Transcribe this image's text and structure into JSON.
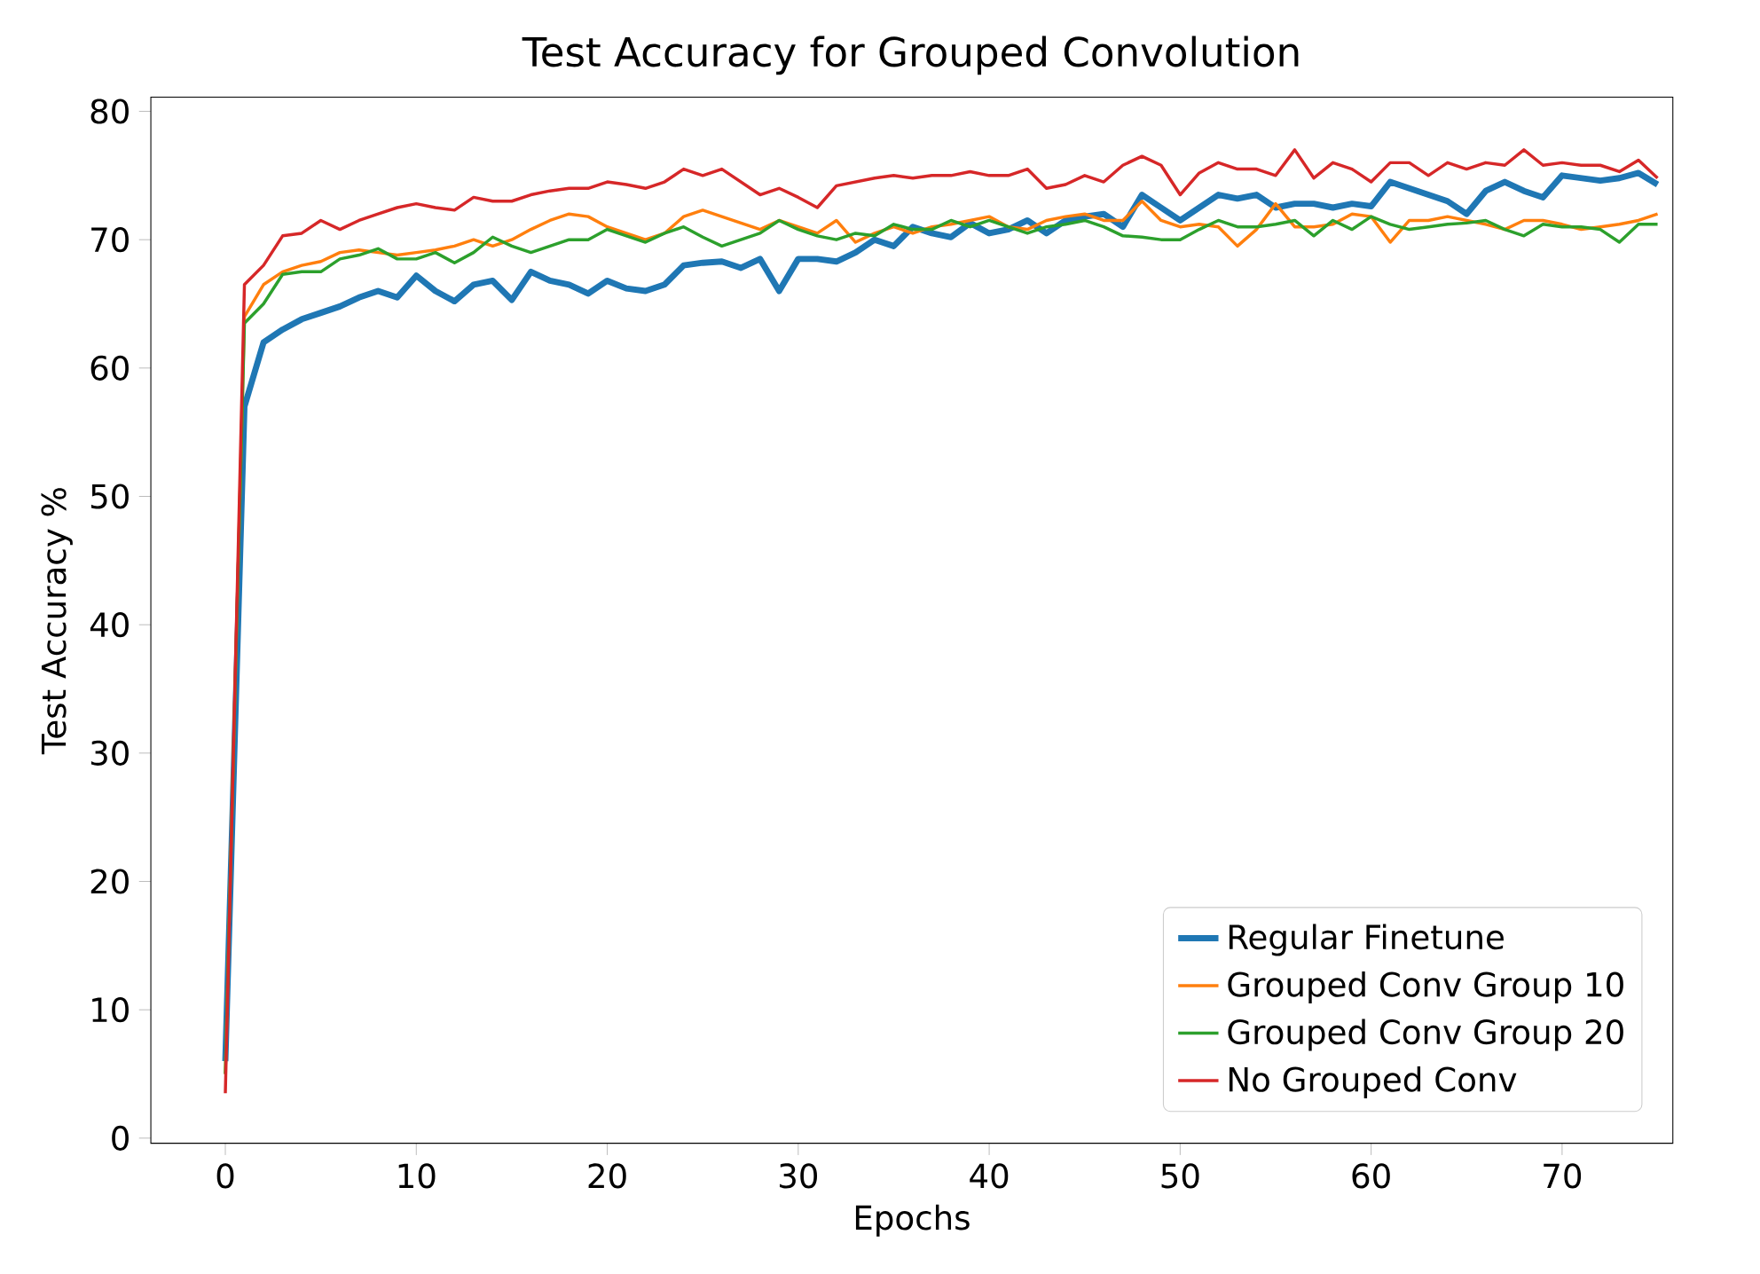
{
  "chart_data": {
    "type": "line",
    "title": "Test Accuracy for Grouped Convolution",
    "xlabel": "Epochs",
    "ylabel": "Test Accuracy %",
    "x": [
      0,
      1,
      2,
      3,
      4,
      5,
      6,
      7,
      8,
      9,
      10,
      11,
      12,
      13,
      14,
      15,
      16,
      17,
      18,
      19,
      20,
      21,
      22,
      23,
      24,
      25,
      26,
      27,
      28,
      29,
      30,
      31,
      32,
      33,
      34,
      35,
      36,
      37,
      38,
      39,
      40,
      41,
      42,
      43,
      44,
      45,
      46,
      47,
      48,
      49,
      50,
      51,
      52,
      53,
      54,
      55,
      56,
      57,
      58,
      59,
      60,
      61,
      62,
      63,
      64,
      65,
      66,
      67,
      68,
      69,
      70,
      71,
      72,
      73,
      74,
      75
    ],
    "xlim": [
      -3.9,
      75.8
    ],
    "ylim": [
      -0.4,
      81.1
    ],
    "xticks": [
      0,
      10,
      20,
      30,
      40,
      50,
      60,
      70
    ],
    "yticks": [
      0,
      10,
      20,
      30,
      40,
      50,
      60,
      70,
      80
    ],
    "legend": "bottom right",
    "grid": false,
    "line_style": "solid",
    "marker": "none",
    "series": [
      {
        "name": "Regular Finetune",
        "color": "#1f77b4",
        "values": [
          6,
          57,
          62,
          63,
          63.8,
          64.3,
          64.8,
          65.5,
          66,
          65.5,
          67.2,
          66,
          65.2,
          66.5,
          66.8,
          65.3,
          67.5,
          66.8,
          66.5,
          65.8,
          66.8,
          66.2,
          66,
          66.5,
          68,
          68.2,
          68.3,
          67.8,
          68.5,
          66,
          68.5,
          68.5,
          68.3,
          69,
          70,
          69.5,
          71,
          70.5,
          70.2,
          71.3,
          70.5,
          70.8,
          71.5,
          70.5,
          71.5,
          71.8,
          72,
          71,
          73.5,
          72.5,
          71.5,
          72.5,
          73.5,
          73.2,
          73.5,
          72.5,
          72.8,
          72.8,
          72.5,
          72.8,
          72.6,
          74.5,
          74,
          73.5,
          73,
          72,
          73.8,
          74.5,
          73.8,
          73.3,
          75,
          74.8,
          74.6,
          74.8,
          75.2,
          74.3
        ]
      },
      {
        "name": "Grouped Conv Group 10",
        "color": "#ff7f0e",
        "values": [
          5,
          64,
          66.5,
          67.5,
          68,
          68.3,
          69,
          69.2,
          69,
          68.8,
          69,
          69.2,
          69.5,
          70,
          69.5,
          70,
          70.8,
          71.5,
          72,
          71.8,
          71,
          70.5,
          70,
          70.5,
          71.8,
          72.3,
          71.8,
          71.3,
          70.8,
          71.5,
          71,
          70.5,
          71.5,
          69.8,
          70.5,
          71,
          70.5,
          71,
          71.2,
          71.5,
          71.8,
          71,
          70.8,
          71.5,
          71.8,
          72,
          71.5,
          71.5,
          73,
          71.5,
          71,
          71.2,
          71,
          69.5,
          70.8,
          72.8,
          71,
          71,
          71.2,
          72,
          71.8,
          69.8,
          71.5,
          71.5,
          71.8,
          71.5,
          71.2,
          70.8,
          71.5,
          71.5,
          71.2,
          70.8,
          71,
          71.2,
          71.5,
          72
        ]
      },
      {
        "name": "Grouped Conv Group 20",
        "color": "#2ca02c",
        "values": [
          5,
          63.5,
          65,
          67.3,
          67.5,
          67.5,
          68.5,
          68.8,
          69.3,
          68.5,
          68.5,
          69,
          68.2,
          69,
          70.2,
          69.5,
          69,
          69.5,
          70,
          70,
          70.8,
          70.3,
          69.8,
          70.5,
          71,
          70.2,
          69.5,
          70,
          70.5,
          71.5,
          70.8,
          70.3,
          70,
          70.5,
          70.3,
          71.2,
          70.8,
          70.8,
          71.5,
          71,
          71.5,
          71,
          70.5,
          71,
          71.2,
          71.5,
          71,
          70.3,
          70.2,
          70,
          70,
          70.8,
          71.5,
          71,
          71,
          71.2,
          71.5,
          70.3,
          71.5,
          70.8,
          71.8,
          71.2,
          70.8,
          71,
          71.2,
          71.3,
          71.5,
          70.8,
          70.3,
          71.2,
          71,
          71,
          70.8,
          69.8,
          71.2,
          71.2
        ]
      },
      {
        "name": "No Grouped Conv",
        "color": "#d62728",
        "values": [
          3.5,
          66.5,
          68,
          70.3,
          70.5,
          71.5,
          70.8,
          71.5,
          72,
          72.5,
          72.8,
          72.5,
          72.3,
          73.3,
          73,
          73,
          73.5,
          73.8,
          74,
          74,
          74.5,
          74.3,
          74,
          74.5,
          75.5,
          75,
          75.5,
          74.5,
          73.5,
          74,
          73.3,
          72.5,
          74.2,
          74.5,
          74.8,
          75,
          74.8,
          75,
          75,
          75.3,
          75,
          75,
          75.5,
          74,
          74.3,
          75,
          74.5,
          75.8,
          76.5,
          75.8,
          73.5,
          75.2,
          76,
          75.5,
          75.5,
          75,
          77,
          74.8,
          76,
          75.5,
          74.5,
          76,
          76,
          75,
          76,
          75.5,
          76,
          75.8,
          77,
          75.8,
          76,
          75.8,
          75.8,
          75.3,
          76.2,
          74.8
        ]
      }
    ]
  }
}
